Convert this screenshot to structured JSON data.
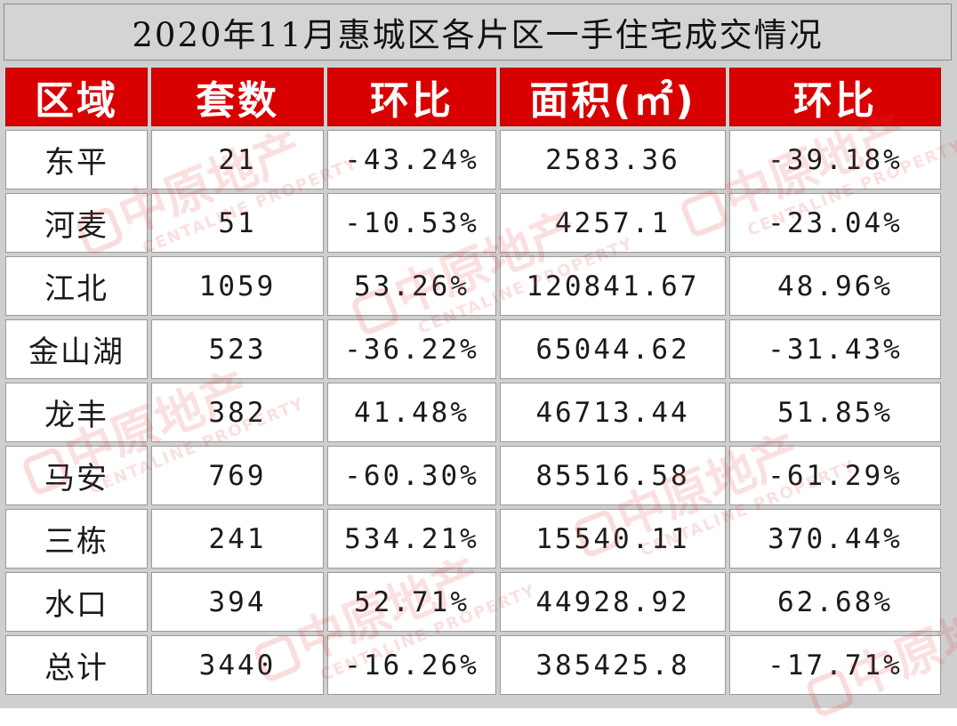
{
  "title": "2020年11月惠城区各片区一手住宅成交情况",
  "headers": [
    "区域",
    "套数",
    "环比",
    "面积(㎡)",
    "环比"
  ],
  "rows": [
    [
      "东平",
      "21",
      "-43.24%",
      "2583.36",
      "-39.18%"
    ],
    [
      "河麦",
      "51",
      "-10.53%",
      "4257.1",
      "-23.04%"
    ],
    [
      "江北",
      "1059",
      "53.26%",
      "120841.67",
      "48.96%"
    ],
    [
      "金山湖",
      "523",
      "-36.22%",
      "65044.62",
      "-31.43%"
    ],
    [
      "龙丰",
      "382",
      "41.48%",
      "46713.44",
      "51.85%"
    ],
    [
      "马安",
      "769",
      "-60.30%",
      "85516.58",
      "-61.29%"
    ],
    [
      "三栋",
      "241",
      "534.21%",
      "15540.11",
      "370.44%"
    ],
    [
      "水口",
      "394",
      "52.71%",
      "44928.92",
      "62.68%"
    ],
    [
      "总计",
      "3440",
      "-16.26%",
      "385425.8",
      "-17.71%"
    ]
  ],
  "watermark": {
    "text": "中原地产",
    "subtext": "CENTALINE PROPERTY"
  },
  "colors": {
    "header_bg": "#d90000",
    "header_text": "#ffffff",
    "frame_bg": "#cfcfcf",
    "watermark": "#e13c3c"
  }
}
